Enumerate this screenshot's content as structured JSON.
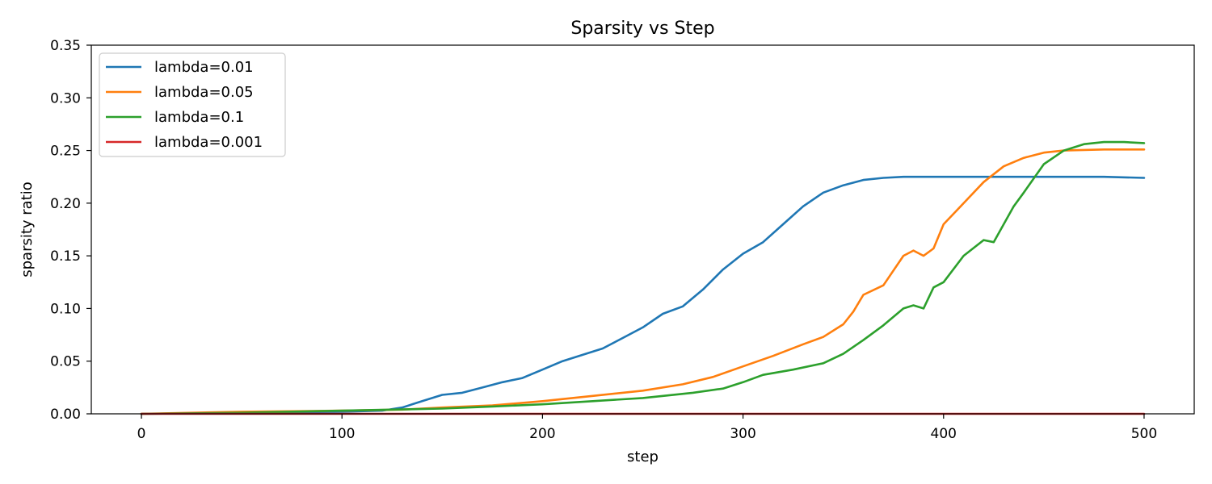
{
  "chart_data": {
    "type": "line",
    "title": "Sparsity vs Step",
    "xlabel": "step",
    "ylabel": "sparsity ratio",
    "xlim": [
      -25,
      525
    ],
    "ylim": [
      0,
      0.35
    ],
    "xticks": [
      "0",
      "100",
      "200",
      "300",
      "400",
      "500"
    ],
    "yticks": [
      "0.00",
      "0.05",
      "0.10",
      "0.15",
      "0.20",
      "0.25",
      "0.30",
      "0.35"
    ],
    "grid": false,
    "legend_position": "upper-left",
    "series": [
      {
        "name": "lambda=0.01",
        "color": "#1f77b4",
        "x": [
          0,
          50,
          100,
          120,
          130,
          140,
          150,
          160,
          170,
          180,
          190,
          200,
          210,
          220,
          230,
          240,
          250,
          260,
          270,
          280,
          290,
          300,
          310,
          320,
          330,
          340,
          350,
          360,
          370,
          380,
          390,
          400,
          420,
          440,
          460,
          480,
          500
        ],
        "y": [
          0.0,
          0.001,
          0.002,
          0.003,
          0.006,
          0.012,
          0.018,
          0.02,
          0.025,
          0.03,
          0.034,
          0.042,
          0.05,
          0.056,
          0.062,
          0.072,
          0.082,
          0.095,
          0.102,
          0.118,
          0.137,
          0.152,
          0.163,
          0.18,
          0.197,
          0.21,
          0.217,
          0.222,
          0.224,
          0.225,
          0.225,
          0.225,
          0.225,
          0.225,
          0.225,
          0.225,
          0.224
        ]
      },
      {
        "name": "lambda=0.05",
        "color": "#ff7f0e",
        "x": [
          0,
          50,
          100,
          130,
          150,
          175,
          200,
          225,
          250,
          270,
          285,
          300,
          315,
          330,
          340,
          350,
          355,
          360,
          370,
          380,
          385,
          390,
          395,
          400,
          410,
          420,
          430,
          440,
          450,
          460,
          480,
          500
        ],
        "y": [
          0.0,
          0.002,
          0.003,
          0.004,
          0.006,
          0.008,
          0.012,
          0.017,
          0.022,
          0.028,
          0.035,
          0.045,
          0.055,
          0.066,
          0.073,
          0.085,
          0.097,
          0.113,
          0.122,
          0.15,
          0.155,
          0.15,
          0.157,
          0.18,
          0.2,
          0.22,
          0.235,
          0.243,
          0.248,
          0.25,
          0.251,
          0.251
        ]
      },
      {
        "name": "lambda=0.1",
        "color": "#2ca02c",
        "x": [
          0,
          50,
          100,
          150,
          175,
          200,
          225,
          250,
          275,
          290,
          300,
          310,
          325,
          340,
          350,
          360,
          370,
          380,
          385,
          390,
          395,
          400,
          410,
          420,
          425,
          430,
          435,
          440,
          450,
          460,
          470,
          480,
          490,
          500
        ],
        "y": [
          0.0,
          0.001,
          0.003,
          0.005,
          0.007,
          0.009,
          0.012,
          0.015,
          0.02,
          0.024,
          0.03,
          0.037,
          0.042,
          0.048,
          0.057,
          0.07,
          0.084,
          0.1,
          0.103,
          0.1,
          0.12,
          0.125,
          0.15,
          0.165,
          0.163,
          0.18,
          0.197,
          0.21,
          0.237,
          0.25,
          0.256,
          0.258,
          0.258,
          0.257
        ]
      },
      {
        "name": "lambda=0.001",
        "color": "#d62728",
        "x": [
          0,
          100,
          200,
          300,
          400,
          500
        ],
        "y": [
          0.0,
          0.0,
          0.0,
          0.0,
          0.0,
          0.0
        ]
      }
    ]
  }
}
